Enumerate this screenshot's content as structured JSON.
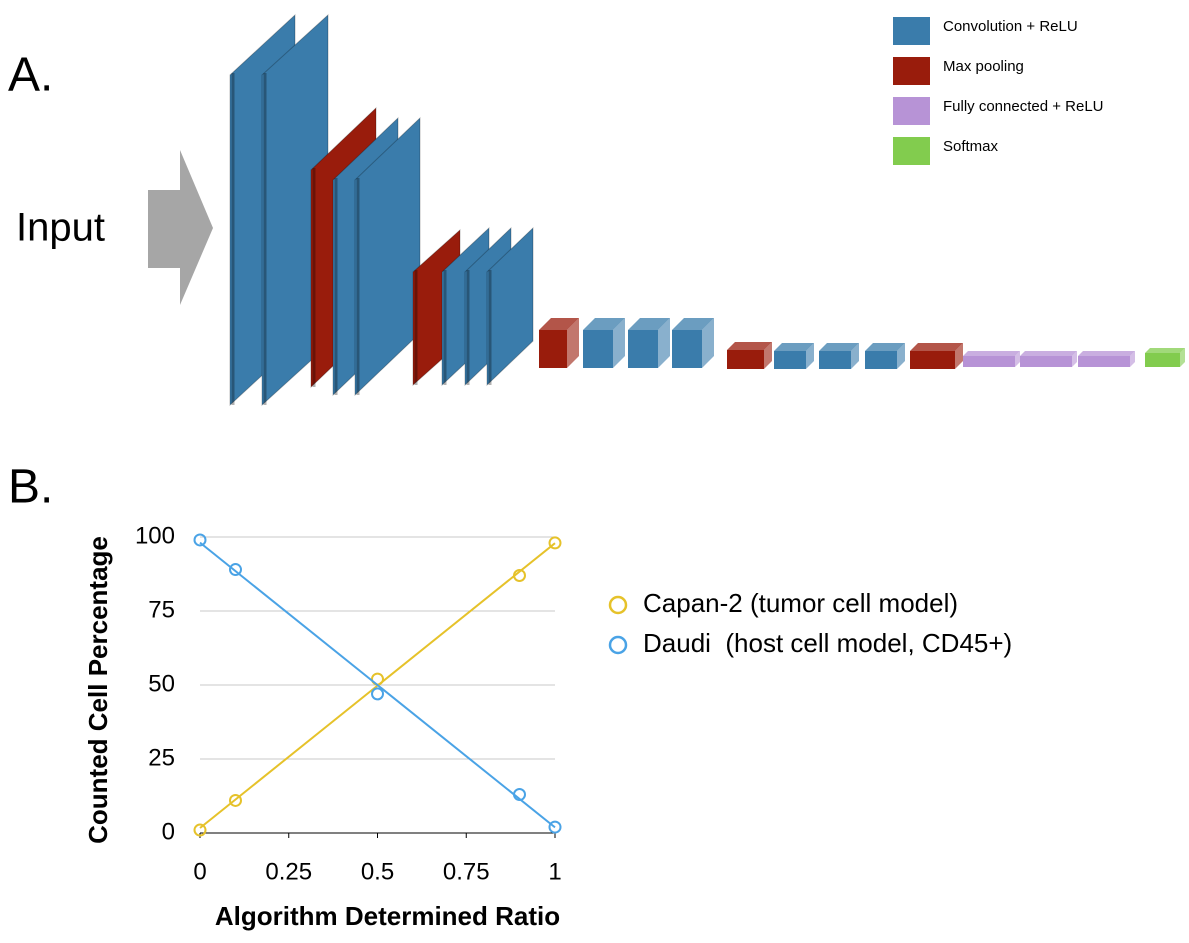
{
  "panel_a": {
    "label": "A.",
    "input_label": "Input",
    "legend": [
      {
        "label": "Convolution + ReLU",
        "color": "#3a7cab"
      },
      {
        "label": "Max pooling",
        "color": "#991c0c"
      },
      {
        "label": "Fully connected + ReLU",
        "color": "#b793d6"
      },
      {
        "label": "Softmax",
        "color": "#82cc4e"
      }
    ]
  },
  "panel_b_label": "B.",
  "chart_data": {
    "type": "scatter",
    "xlabel": "Algorithm Determined Ratio",
    "ylabel": "Counted Cell Percentage",
    "xlim": [
      0,
      1
    ],
    "ylim": [
      0,
      100
    ],
    "xticks": [
      0,
      0.25,
      0.5,
      0.75,
      1
    ],
    "yticks": [
      0,
      25,
      50,
      75,
      100
    ],
    "grid": true,
    "trendline": true,
    "legend": "right",
    "series": [
      {
        "name": "Capan-2 (tumor cell model)",
        "color": "#e6c22a",
        "x": [
          0,
          0.1,
          0.5,
          0.9,
          1
        ],
        "values": [
          1,
          11,
          52,
          87,
          98
        ]
      },
      {
        "name": "Daudi  (host cell model, CD45+)",
        "color": "#4aa3e6",
        "x": [
          0,
          0.1,
          0.5,
          0.9,
          1
        ],
        "values": [
          99,
          89,
          47,
          13,
          2
        ]
      }
    ]
  }
}
